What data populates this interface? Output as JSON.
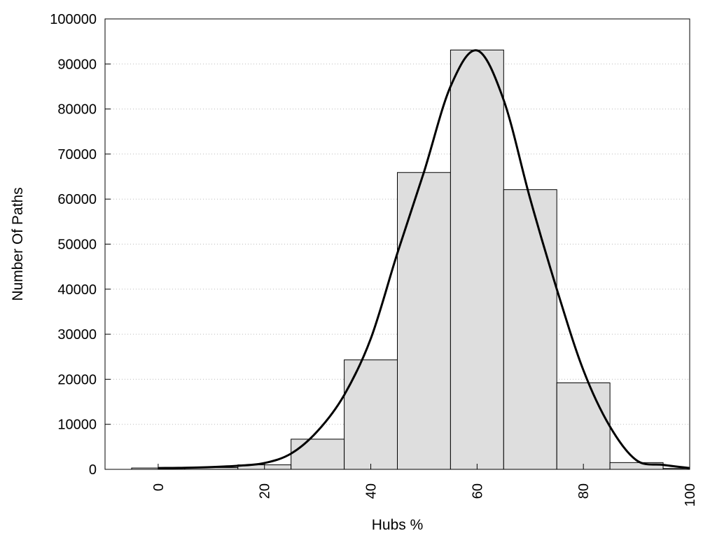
{
  "chart_data": {
    "type": "bar",
    "title": "",
    "xlabel": "Hubs %",
    "ylabel": "Number Of Paths",
    "xlim": [
      -10,
      100
    ],
    "ylim": [
      0,
      100000
    ],
    "x_ticks": [
      0,
      20,
      40,
      60,
      80,
      100
    ],
    "y_ticks": [
      0,
      10000,
      20000,
      30000,
      40000,
      50000,
      60000,
      70000,
      80000,
      90000,
      100000
    ],
    "grid": "horizontal dotted",
    "legend": "none",
    "bars": {
      "bin_width": 10,
      "centers": [
        0,
        10,
        20,
        30,
        40,
        50,
        60,
        70,
        80,
        90,
        100
      ],
      "values": [
        300,
        400,
        1000,
        6700,
        24300,
        65900,
        93100,
        62100,
        19200,
        1500,
        200
      ],
      "fill": "#dedede",
      "stroke": "#000000"
    },
    "curve": {
      "x": [
        0,
        5,
        10,
        15,
        20,
        25,
        30,
        35,
        40,
        45,
        50,
        55,
        60,
        65,
        70,
        75,
        80,
        85,
        90,
        95,
        100
      ],
      "y": [
        300,
        350,
        500,
        800,
        1400,
        3500,
        8500,
        16500,
        29000,
        48000,
        66000,
        85000,
        93000,
        82000,
        60000,
        40000,
        22000,
        9500,
        2000,
        1000,
        300
      ],
      "color": "#000000"
    }
  }
}
